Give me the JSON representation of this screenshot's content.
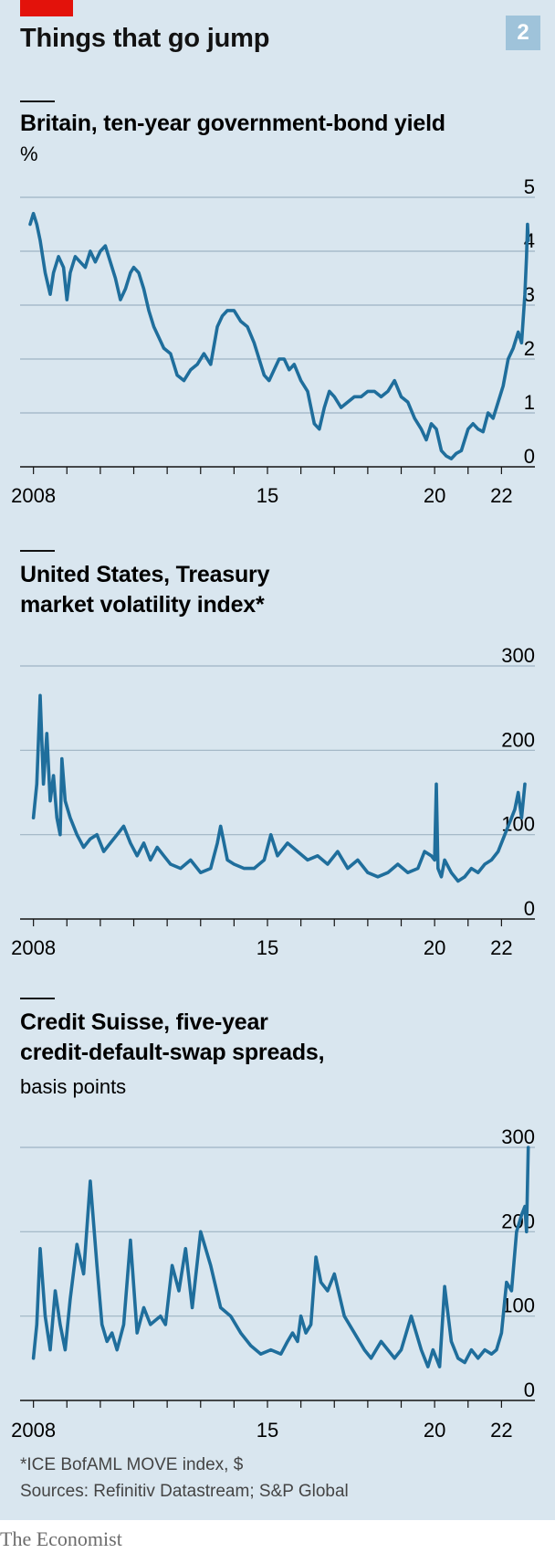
{
  "header": {
    "title": "Things that go jump",
    "chart_number": "2"
  },
  "footnotes": {
    "note": "*ICE BofAML MOVE index, $",
    "source": "Sources: Refinitiv Datastream; S&P Global"
  },
  "brand": {
    "name": "The Economist"
  },
  "colors": {
    "background": "#d9e6ef",
    "line": "#1f6e9c",
    "accent": "#e3120b",
    "grid": "#9fb3c3",
    "axis": "#121212"
  },
  "chart_data": [
    {
      "type": "line",
      "title": "Britain, ten-year government-bond yield",
      "subtitle": "%",
      "ylim": [
        0,
        5
      ],
      "yticks": [
        0,
        1,
        2,
        3,
        4,
        5
      ],
      "xlim": [
        2007.6,
        2023.0
      ],
      "xtick_labels": [
        {
          "x": 2008,
          "label": "2008"
        },
        {
          "x": 2015,
          "label": "15"
        },
        {
          "x": 2020,
          "label": "20"
        },
        {
          "x": 2022,
          "label": "22"
        }
      ],
      "xticks_minor": [
        2008,
        2009,
        2010,
        2011,
        2012,
        2013,
        2014,
        2015,
        2016,
        2017,
        2018,
        2019,
        2020,
        2021,
        2022
      ],
      "grid": true,
      "series": [
        {
          "x": [
            2007.9,
            2008.0,
            2008.1,
            2008.2,
            2008.35,
            2008.5,
            2008.6,
            2008.75,
            2008.9,
            2009.0,
            2009.1,
            2009.25,
            2009.4,
            2009.55,
            2009.7,
            2009.85,
            2010.0,
            2010.15,
            2010.3,
            2010.45,
            2010.6,
            2010.75,
            2010.9,
            2011.0,
            2011.15,
            2011.3,
            2011.45,
            2011.6,
            2011.75,
            2011.9,
            2012.1,
            2012.3,
            2012.5,
            2012.7,
            2012.9,
            2013.1,
            2013.3,
            2013.5,
            2013.65,
            2013.8,
            2014.0,
            2014.2,
            2014.4,
            2014.6,
            2014.75,
            2014.9,
            2015.05,
            2015.2,
            2015.35,
            2015.5,
            2015.65,
            2015.8,
            2016.0,
            2016.2,
            2016.4,
            2016.55,
            2016.7,
            2016.85,
            2017.0,
            2017.2,
            2017.4,
            2017.6,
            2017.8,
            2018.0,
            2018.2,
            2018.4,
            2018.6,
            2018.8,
            2019.0,
            2019.2,
            2019.4,
            2019.6,
            2019.75,
            2019.9,
            2020.05,
            2020.2,
            2020.35,
            2020.5,
            2020.65,
            2020.8,
            2021.0,
            2021.15,
            2021.3,
            2021.45,
            2021.6,
            2021.75,
            2021.9,
            2022.05,
            2022.2,
            2022.35,
            2022.5,
            2022.6,
            2022.7,
            2022.75,
            2022.78,
            2022.8
          ],
          "values": [
            4.5,
            4.7,
            4.5,
            4.2,
            3.6,
            3.2,
            3.6,
            3.9,
            3.7,
            3.1,
            3.6,
            3.9,
            3.8,
            3.7,
            4.0,
            3.8,
            4.0,
            4.1,
            3.8,
            3.5,
            3.1,
            3.3,
            3.6,
            3.7,
            3.6,
            3.3,
            2.9,
            2.6,
            2.4,
            2.2,
            2.1,
            1.7,
            1.6,
            1.8,
            1.9,
            2.1,
            1.9,
            2.6,
            2.8,
            2.9,
            2.9,
            2.7,
            2.6,
            2.3,
            2.0,
            1.7,
            1.6,
            1.8,
            2.0,
            2.0,
            1.8,
            1.9,
            1.6,
            1.4,
            0.8,
            0.7,
            1.1,
            1.4,
            1.3,
            1.1,
            1.2,
            1.3,
            1.3,
            1.4,
            1.4,
            1.3,
            1.4,
            1.6,
            1.3,
            1.2,
            0.9,
            0.7,
            0.5,
            0.8,
            0.7,
            0.3,
            0.2,
            0.15,
            0.25,
            0.3,
            0.7,
            0.8,
            0.7,
            0.65,
            1.0,
            0.9,
            1.2,
            1.5,
            2.0,
            2.2,
            2.5,
            2.3,
            3.2,
            3.9,
            4.5,
            4.2
          ]
        }
      ]
    },
    {
      "type": "line",
      "title": "United States, Treasury market volatility index*",
      "title_lines": [
        "United States, Treasury",
        "market volatility index*"
      ],
      "ylim": [
        0,
        300
      ],
      "yticks": [
        0,
        100,
        200,
        300
      ],
      "xlim": [
        2007.6,
        2023.0
      ],
      "xtick_labels": [
        {
          "x": 2008,
          "label": "2008"
        },
        {
          "x": 2015,
          "label": "15"
        },
        {
          "x": 2020,
          "label": "20"
        },
        {
          "x": 2022,
          "label": "22"
        }
      ],
      "xticks_minor": [
        2008,
        2009,
        2010,
        2011,
        2012,
        2013,
        2014,
        2015,
        2016,
        2017,
        2018,
        2019,
        2020,
        2021,
        2022
      ],
      "grid": true,
      "series": [
        {
          "x": [
            2008.0,
            2008.1,
            2008.2,
            2008.3,
            2008.4,
            2008.5,
            2008.6,
            2008.7,
            2008.8,
            2008.85,
            2008.95,
            2009.1,
            2009.3,
            2009.5,
            2009.7,
            2009.9,
            2010.1,
            2010.3,
            2010.5,
            2010.7,
            2010.9,
            2011.1,
            2011.3,
            2011.5,
            2011.7,
            2011.9,
            2012.1,
            2012.4,
            2012.7,
            2013.0,
            2013.3,
            2013.5,
            2013.6,
            2013.8,
            2014.0,
            2014.3,
            2014.6,
            2014.9,
            2015.1,
            2015.3,
            2015.6,
            2015.9,
            2016.2,
            2016.5,
            2016.8,
            2017.1,
            2017.4,
            2017.7,
            2018.0,
            2018.3,
            2018.6,
            2018.9,
            2019.2,
            2019.5,
            2019.7,
            2019.9,
            2020.0,
            2020.05,
            2020.1,
            2020.2,
            2020.3,
            2020.5,
            2020.7,
            2020.9,
            2021.1,
            2021.3,
            2021.5,
            2021.7,
            2021.9,
            2022.1,
            2022.3,
            2022.4,
            2022.5,
            2022.6,
            2022.7
          ],
          "values": [
            120,
            160,
            265,
            160,
            220,
            140,
            170,
            120,
            100,
            190,
            140,
            120,
            100,
            85,
            95,
            100,
            80,
            90,
            100,
            110,
            90,
            75,
            90,
            70,
            85,
            75,
            65,
            60,
            70,
            55,
            60,
            90,
            110,
            70,
            65,
            60,
            60,
            70,
            100,
            75,
            90,
            80,
            70,
            75,
            65,
            80,
            60,
            70,
            55,
            50,
            55,
            65,
            55,
            60,
            80,
            75,
            70,
            160,
            60,
            50,
            70,
            55,
            45,
            50,
            60,
            55,
            65,
            70,
            80,
            100,
            120,
            130,
            150,
            120,
            160
          ]
        }
      ]
    },
    {
      "type": "line",
      "title": "Credit Suisse, five-year credit-default-swap spreads,",
      "title_lines": [
        "Credit Suisse, five-year",
        "credit-default-swap spreads,"
      ],
      "subtitle": "basis points",
      "ylim": [
        0,
        300
      ],
      "yticks": [
        0,
        100,
        200,
        300
      ],
      "xlim": [
        2007.6,
        2023.0
      ],
      "xtick_labels": [
        {
          "x": 2008,
          "label": "2008"
        },
        {
          "x": 2015,
          "label": "15"
        },
        {
          "x": 2020,
          "label": "20"
        },
        {
          "x": 2022,
          "label": "22"
        }
      ],
      "xticks_minor": [
        2008,
        2009,
        2010,
        2011,
        2012,
        2013,
        2014,
        2015,
        2016,
        2017,
        2018,
        2019,
        2020,
        2021,
        2022
      ],
      "grid": true,
      "series": [
        {
          "x": [
            2008.0,
            2008.1,
            2008.2,
            2008.35,
            2008.5,
            2008.65,
            2008.8,
            2008.95,
            2009.1,
            2009.3,
            2009.5,
            2009.7,
            2009.9,
            2010.05,
            2010.2,
            2010.35,
            2010.5,
            2010.7,
            2010.9,
            2011.1,
            2011.3,
            2011.5,
            2011.65,
            2011.8,
            2011.95,
            2012.15,
            2012.35,
            2012.55,
            2012.75,
            2013.0,
            2013.3,
            2013.6,
            2013.9,
            2014.2,
            2014.5,
            2014.8,
            2015.1,
            2015.4,
            2015.6,
            2015.75,
            2015.9,
            2016.0,
            2016.15,
            2016.3,
            2016.45,
            2016.6,
            2016.8,
            2017.0,
            2017.3,
            2017.6,
            2017.9,
            2018.1,
            2018.4,
            2018.6,
            2018.8,
            2019.0,
            2019.3,
            2019.6,
            2019.8,
            2019.95,
            2020.05,
            2020.15,
            2020.3,
            2020.5,
            2020.7,
            2020.9,
            2021.1,
            2021.3,
            2021.5,
            2021.7,
            2021.85,
            2022.0,
            2022.15,
            2022.3,
            2022.45,
            2022.6,
            2022.7,
            2022.75,
            2022.8
          ],
          "values": [
            50,
            90,
            180,
            100,
            60,
            130,
            90,
            60,
            120,
            185,
            150,
            260,
            160,
            90,
            70,
            80,
            60,
            90,
            190,
            80,
            110,
            90,
            95,
            100,
            90,
            160,
            130,
            180,
            110,
            200,
            160,
            110,
            100,
            80,
            65,
            55,
            60,
            55,
            70,
            80,
            70,
            100,
            80,
            90,
            170,
            140,
            130,
            150,
            100,
            80,
            60,
            50,
            70,
            60,
            50,
            60,
            100,
            60,
            40,
            60,
            50,
            40,
            135,
            70,
            50,
            45,
            60,
            50,
            60,
            55,
            60,
            80,
            140,
            130,
            200,
            220,
            230,
            200,
            300
          ]
        }
      ]
    }
  ]
}
